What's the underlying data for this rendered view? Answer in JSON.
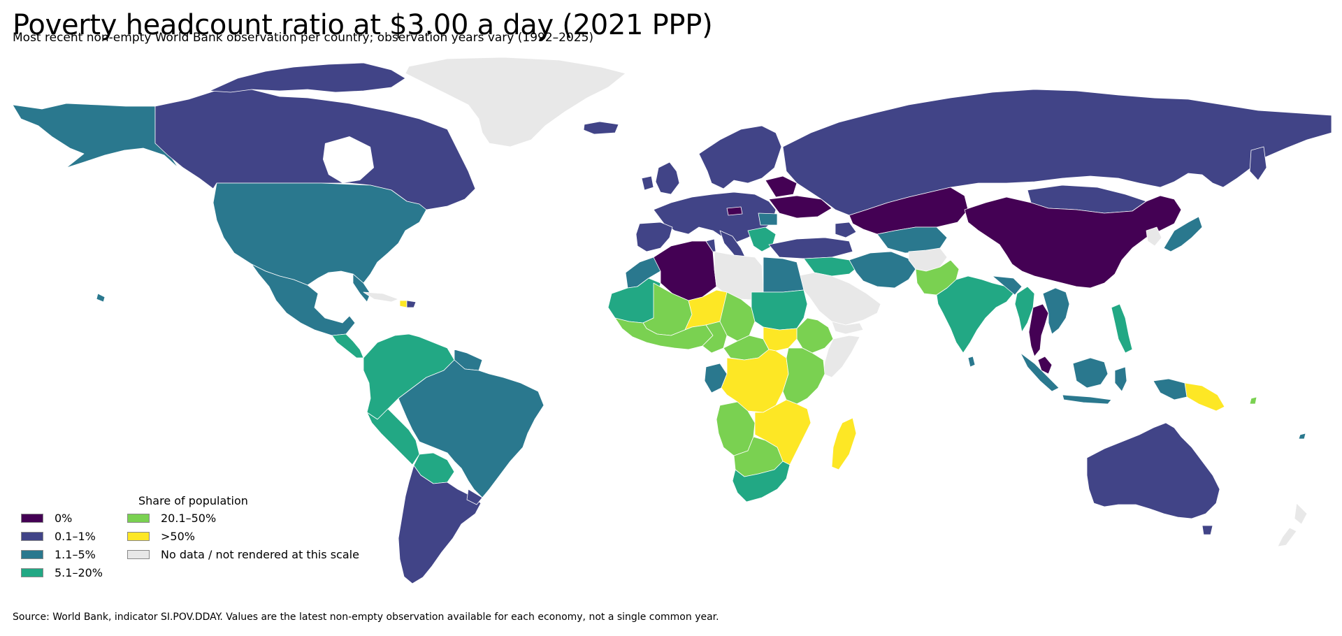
{
  "header": {
    "title": "Poverty headcount ratio at $3.00 a day (2021 PPP)",
    "subtitle": "Most recent non-empty World Bank observation per country; observation years vary (1992–2025)"
  },
  "legend": {
    "title": "Share of population",
    "items": [
      {
        "label": "0%",
        "color": "#440154"
      },
      {
        "label": "0.1–1%",
        "color": "#414487"
      },
      {
        "label": "1.1–5%",
        "color": "#2a788e"
      },
      {
        "label": "5.1–20%",
        "color": "#22a884"
      },
      {
        "label": "20.1–50%",
        "color": "#7ad151"
      },
      {
        "label": ">50%",
        "color": "#fde725"
      },
      {
        "label": "No data / not rendered at this scale",
        "color": "#e8e8e8"
      }
    ]
  },
  "source": "Source: World Bank, indicator SI.POV.DDAY. Values are the latest non-empty observation available for each economy, not a single common year.",
  "colors": {
    "bin_0": "#440154",
    "bin_0_1": "#414487",
    "bin_1_5": "#2a788e",
    "bin_5_20": "#22a884",
    "bin_20_50": "#7ad151",
    "bin_50_plus": "#fde725",
    "no_data": "#e8e8e8",
    "border": "#ffffff"
  }
}
